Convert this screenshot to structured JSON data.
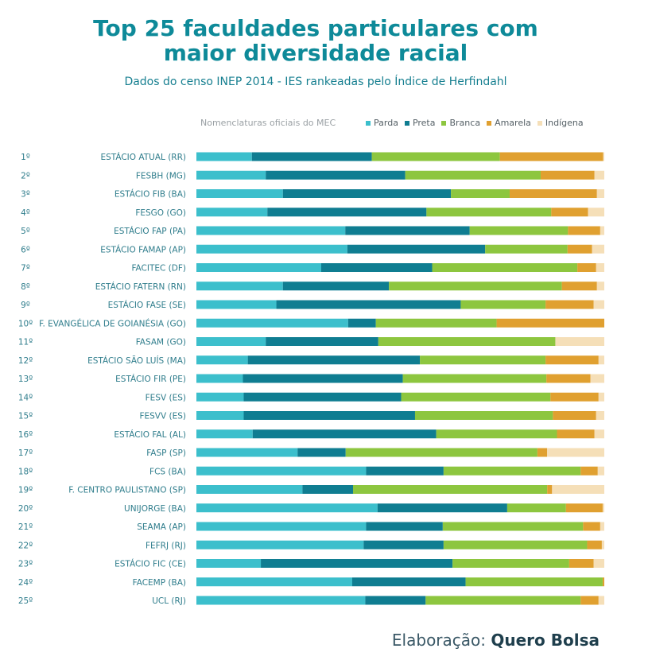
{
  "title_line1": "Top 25 faculdades particulares com",
  "title_line2": "maior diversidade racial",
  "subtitle": "Dados do censo INEP 2014 - IES rankeadas pelo Índice de Herfindahl",
  "legend_caption": "Nomenclaturas oficiais do MEC",
  "credit_prefix": "Elaboração:",
  "credit_brand": "Quero Bolsa",
  "chart_data": {
    "type": "bar",
    "orientation": "horizontal",
    "stacked": true,
    "normalized_to": 100,
    "xlim": [
      0,
      100
    ],
    "legend_position": "top-right",
    "grid": false,
    "rank_labels": [
      "1º",
      "2º",
      "3º",
      "4º",
      "5º",
      "6º",
      "7º",
      "8º",
      "9º",
      "10º",
      "11º",
      "12º",
      "13º",
      "14º",
      "15º",
      "16º",
      "17º",
      "18º",
      "19º",
      "20º",
      "21º",
      "22º",
      "23º",
      "24º",
      "25º"
    ],
    "categories": [
      "ESTÁCIO ATUAL (RR)",
      "FESBH (MG)",
      "ESTÁCIO FIB (BA)",
      "FESGO (GO)",
      "ESTÁCIO FAP (PA)",
      "ESTÁCIO FAMAP (AP)",
      "FACITEC (DF)",
      "ESTÁCIO FATERN (RN)",
      "ESTÁCIO FASE (SE)",
      "F. EVANGÉLICA DE GOIANÉSIA (GO)",
      "FASAM (GO)",
      "ESTÁCIO SÃO LUÍS (MA)",
      "ESTÁCIO FIR (PE)",
      "FESV (ES)",
      "FESVV (ES)",
      "ESTÁCIO FAL (AL)",
      "FASP (SP)",
      "FCS (BA)",
      "F. CENTRO PAULISTANO (SP)",
      "UNIJORGE (BA)",
      "SEAMA (AP)",
      "FEFRJ (RJ)",
      "ESTÁCIO FIC (CE)",
      "FACEMP (BA)",
      "UCL (RJ)"
    ],
    "series": [
      {
        "name": "Parda",
        "color": "#3cbfcc",
        "values": [
          13.6,
          17.0,
          21.2,
          17.4,
          36.5,
          37.0,
          30.6,
          21.2,
          19.6,
          37.2,
          17.0,
          12.6,
          11.4,
          11.6,
          11.6,
          13.8,
          24.8,
          41.6,
          26.0,
          44.4,
          41.6,
          41.0,
          15.8,
          38.2,
          41.4
        ]
      },
      {
        "name": "Preta",
        "color": "#0f7d91",
        "values": [
          29.4,
          34.2,
          41.2,
          39.0,
          30.5,
          33.8,
          27.2,
          26.0,
          45.2,
          6.8,
          27.6,
          42.2,
          39.2,
          38.6,
          42.0,
          45.0,
          11.8,
          19.0,
          12.4,
          31.8,
          18.8,
          19.6,
          47.0,
          27.8,
          14.8
        ]
      },
      {
        "name": "Branca",
        "color": "#8dc63f",
        "values": [
          31.4,
          33.2,
          14.4,
          30.6,
          24.1,
          20.2,
          35.6,
          42.4,
          20.8,
          29.6,
          43.4,
          30.8,
          35.2,
          36.6,
          33.8,
          29.6,
          47.0,
          33.6,
          47.6,
          14.4,
          34.4,
          35.2,
          28.6,
          33.6,
          38.0
        ]
      },
      {
        "name": "Amarela",
        "color": "#e0a030",
        "values": [
          25.3,
          13.2,
          21.4,
          9.0,
          7.9,
          6.0,
          4.6,
          8.6,
          11.8,
          26.4,
          0.0,
          13.0,
          10.8,
          11.8,
          10.6,
          9.2,
          2.4,
          4.2,
          1.2,
          9.0,
          4.2,
          3.6,
          6.0,
          0.4,
          4.4
        ]
      },
      {
        "name": "Indígena",
        "color": "#f5dfb8",
        "values": [
          0.3,
          2.4,
          1.8,
          4.0,
          1.0,
          3.0,
          2.0,
          1.8,
          2.6,
          0.0,
          12.0,
          1.4,
          3.4,
          1.4,
          2.0,
          2.4,
          14.0,
          1.6,
          12.8,
          0.4,
          1.0,
          0.6,
          2.6,
          0.0,
          1.4
        ]
      }
    ]
  }
}
